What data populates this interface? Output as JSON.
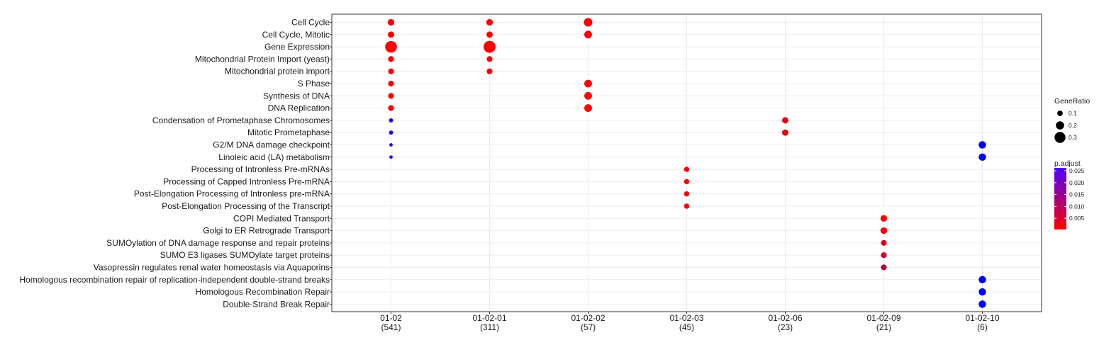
{
  "chart_data": {
    "type": "scatter",
    "title": "",
    "xlabel": "",
    "ylabel": "",
    "grid": true,
    "legend_placement": "right",
    "categories": [
      "01-02",
      "01-02-01",
      "01-02-02",
      "01-02-03",
      "01-02-06",
      "01-02-09",
      "01-02-10"
    ],
    "category_counts": [
      "(541)",
      "(311)",
      "(57)",
      "(45)",
      "(23)",
      "(21)",
      "(6)"
    ],
    "terms": [
      "Cell Cycle",
      "Cell Cycle, Mitotic",
      "Gene Expression",
      "Mitochondrial Protein Import (yeast)",
      "Mitochondrial protein import",
      "S Phase",
      "Synthesis of DNA",
      "DNA Replication",
      "Condensation of Prometaphase Chromosomes",
      "Mitotic Prometaphase",
      "G2/M DNA damage checkpoint",
      "Linoleic acid (LA) metabolism",
      "Processing of Intronless Pre-mRNAs",
      "Processing of Capped Intronless Pre-mRNA",
      "Post-Elongation Processing of Intronless pre-mRNA",
      "Post-Elongation Processing of the Transcript",
      "COPI Mediated Transport",
      "Golgi to ER Retrograde Transport",
      "SUMOylation of DNA damage response and repair proteins",
      "SUMO E3 ligases SUMOylate target proteins",
      "Vasopressin regulates renal water homeostasis via Aquaporins",
      "Homologous recombination repair of replication-independent double-strand breaks",
      "Homologous Recombination Repair",
      "Double-Strand Break Repair"
    ],
    "points": [
      {
        "x": "01-02",
        "term": "Cell Cycle",
        "gene_ratio": 0.14,
        "p_adjust": 0.0005
      },
      {
        "x": "01-02",
        "term": "Cell Cycle, Mitotic",
        "gene_ratio": 0.13,
        "p_adjust": 0.0005
      },
      {
        "x": "01-02",
        "term": "Gene Expression",
        "gene_ratio": 0.33,
        "p_adjust": 0.0003
      },
      {
        "x": "01-02",
        "term": "Mitochondrial Protein Import (yeast)",
        "gene_ratio": 0.11,
        "p_adjust": 0.0008
      },
      {
        "x": "01-02",
        "term": "Mitochondrial protein import",
        "gene_ratio": 0.11,
        "p_adjust": 0.0008
      },
      {
        "x": "01-02",
        "term": "S Phase",
        "gene_ratio": 0.11,
        "p_adjust": 0.0008
      },
      {
        "x": "01-02",
        "term": "Synthesis of DNA",
        "gene_ratio": 0.11,
        "p_adjust": 0.0008
      },
      {
        "x": "01-02",
        "term": "DNA Replication",
        "gene_ratio": 0.11,
        "p_adjust": 0.0008
      },
      {
        "x": "01-02",
        "term": "Condensation of Prometaphase Chromosomes",
        "gene_ratio": 0.05,
        "p_adjust": 0.024
      },
      {
        "x": "01-02",
        "term": "Mitotic Prometaphase",
        "gene_ratio": 0.05,
        "p_adjust": 0.024
      },
      {
        "x": "01-02",
        "term": "G2/M DNA damage checkpoint",
        "gene_ratio": 0.02,
        "p_adjust": 0.025
      },
      {
        "x": "01-02",
        "term": "Linoleic acid (LA) metabolism",
        "gene_ratio": 0.02,
        "p_adjust": 0.025
      },
      {
        "x": "01-02-01",
        "term": "Cell Cycle",
        "gene_ratio": 0.14,
        "p_adjust": 0.0005
      },
      {
        "x": "01-02-01",
        "term": "Cell Cycle, Mitotic",
        "gene_ratio": 0.13,
        "p_adjust": 0.0005
      },
      {
        "x": "01-02-01",
        "term": "Gene Expression",
        "gene_ratio": 0.34,
        "p_adjust": 0.0003
      },
      {
        "x": "01-02-01",
        "term": "Mitochondrial Protein Import (yeast)",
        "gene_ratio": 0.11,
        "p_adjust": 0.0008
      },
      {
        "x": "01-02-01",
        "term": "Mitochondrial protein import",
        "gene_ratio": 0.11,
        "p_adjust": 0.0008
      },
      {
        "x": "01-02-02",
        "term": "Cell Cycle",
        "gene_ratio": 0.21,
        "p_adjust": 0.0005
      },
      {
        "x": "01-02-02",
        "term": "Cell Cycle, Mitotic",
        "gene_ratio": 0.18,
        "p_adjust": 0.0008
      },
      {
        "x": "01-02-02",
        "term": "S Phase",
        "gene_ratio": 0.18,
        "p_adjust": 0.0005
      },
      {
        "x": "01-02-02",
        "term": "Synthesis of DNA",
        "gene_ratio": 0.18,
        "p_adjust": 0.0005
      },
      {
        "x": "01-02-02",
        "term": "DNA Replication",
        "gene_ratio": 0.18,
        "p_adjust": 0.0005
      },
      {
        "x": "01-02-03",
        "term": "Processing of Intronless Pre-mRNAs",
        "gene_ratio": 0.09,
        "p_adjust": 0.0008
      },
      {
        "x": "01-02-03",
        "term": "Processing of Capped Intronless Pre-mRNA",
        "gene_ratio": 0.09,
        "p_adjust": 0.0008
      },
      {
        "x": "01-02-03",
        "term": "Post-Elongation Processing of Intronless pre-mRNA",
        "gene_ratio": 0.09,
        "p_adjust": 0.0008
      },
      {
        "x": "01-02-03",
        "term": "Post-Elongation Processing of the Transcript",
        "gene_ratio": 0.09,
        "p_adjust": 0.0008
      },
      {
        "x": "01-02-06",
        "term": "Condensation of Prometaphase Chromosomes",
        "gene_ratio": 0.13,
        "p_adjust": 0.0025
      },
      {
        "x": "01-02-06",
        "term": "Mitotic Prometaphase",
        "gene_ratio": 0.13,
        "p_adjust": 0.0025
      },
      {
        "x": "01-02-09",
        "term": "COPI Mediated Transport",
        "gene_ratio": 0.14,
        "p_adjust": 0.0005
      },
      {
        "x": "01-02-09",
        "term": "Golgi to ER Retrograde Transport",
        "gene_ratio": 0.14,
        "p_adjust": 0.0005
      },
      {
        "x": "01-02-09",
        "term": "SUMOylation of DNA damage response and repair proteins",
        "gene_ratio": 0.11,
        "p_adjust": 0.004
      },
      {
        "x": "01-02-09",
        "term": "SUMO E3 ligases SUMOylate target proteins",
        "gene_ratio": 0.11,
        "p_adjust": 0.005
      },
      {
        "x": "01-02-09",
        "term": "Vasopressin regulates renal water homeostasis via Aquaporins",
        "gene_ratio": 0.11,
        "p_adjust": 0.008
      },
      {
        "x": "01-02-10",
        "term": "G2/M DNA damage checkpoint",
        "gene_ratio": 0.17,
        "p_adjust": 0.028
      },
      {
        "x": "01-02-10",
        "term": "Linoleic acid (LA) metabolism",
        "gene_ratio": 0.17,
        "p_adjust": 0.028
      },
      {
        "x": "01-02-10",
        "term": "Homologous recombination repair of replication-independent double-strand breaks",
        "gene_ratio": 0.17,
        "p_adjust": 0.028
      },
      {
        "x": "01-02-10",
        "term": "Homologous Recombination Repair",
        "gene_ratio": 0.17,
        "p_adjust": 0.028
      },
      {
        "x": "01-02-10",
        "term": "Double-Strand Break Repair",
        "gene_ratio": 0.17,
        "p_adjust": 0.028
      }
    ],
    "size_legend": {
      "title": "GeneRatio",
      "labels": [
        "0.1",
        "0.2",
        "0.3"
      ],
      "values": [
        0.1,
        0.2,
        0.3
      ]
    },
    "color_legend": {
      "title": "p.adjust",
      "labels": [
        "0.025",
        "0.020",
        "0.015",
        "0.010",
        "0.005"
      ],
      "values": [
        0.025,
        0.02,
        0.015,
        0.01,
        0.005
      ],
      "range": [
        0.0003,
        0.028
      ],
      "low_color": "#ff0000",
      "high_color": "#0000ff"
    },
    "colors": {
      "panel_border": "#333333",
      "grid": "#ebebeb",
      "text": "#1a1a1a"
    }
  }
}
